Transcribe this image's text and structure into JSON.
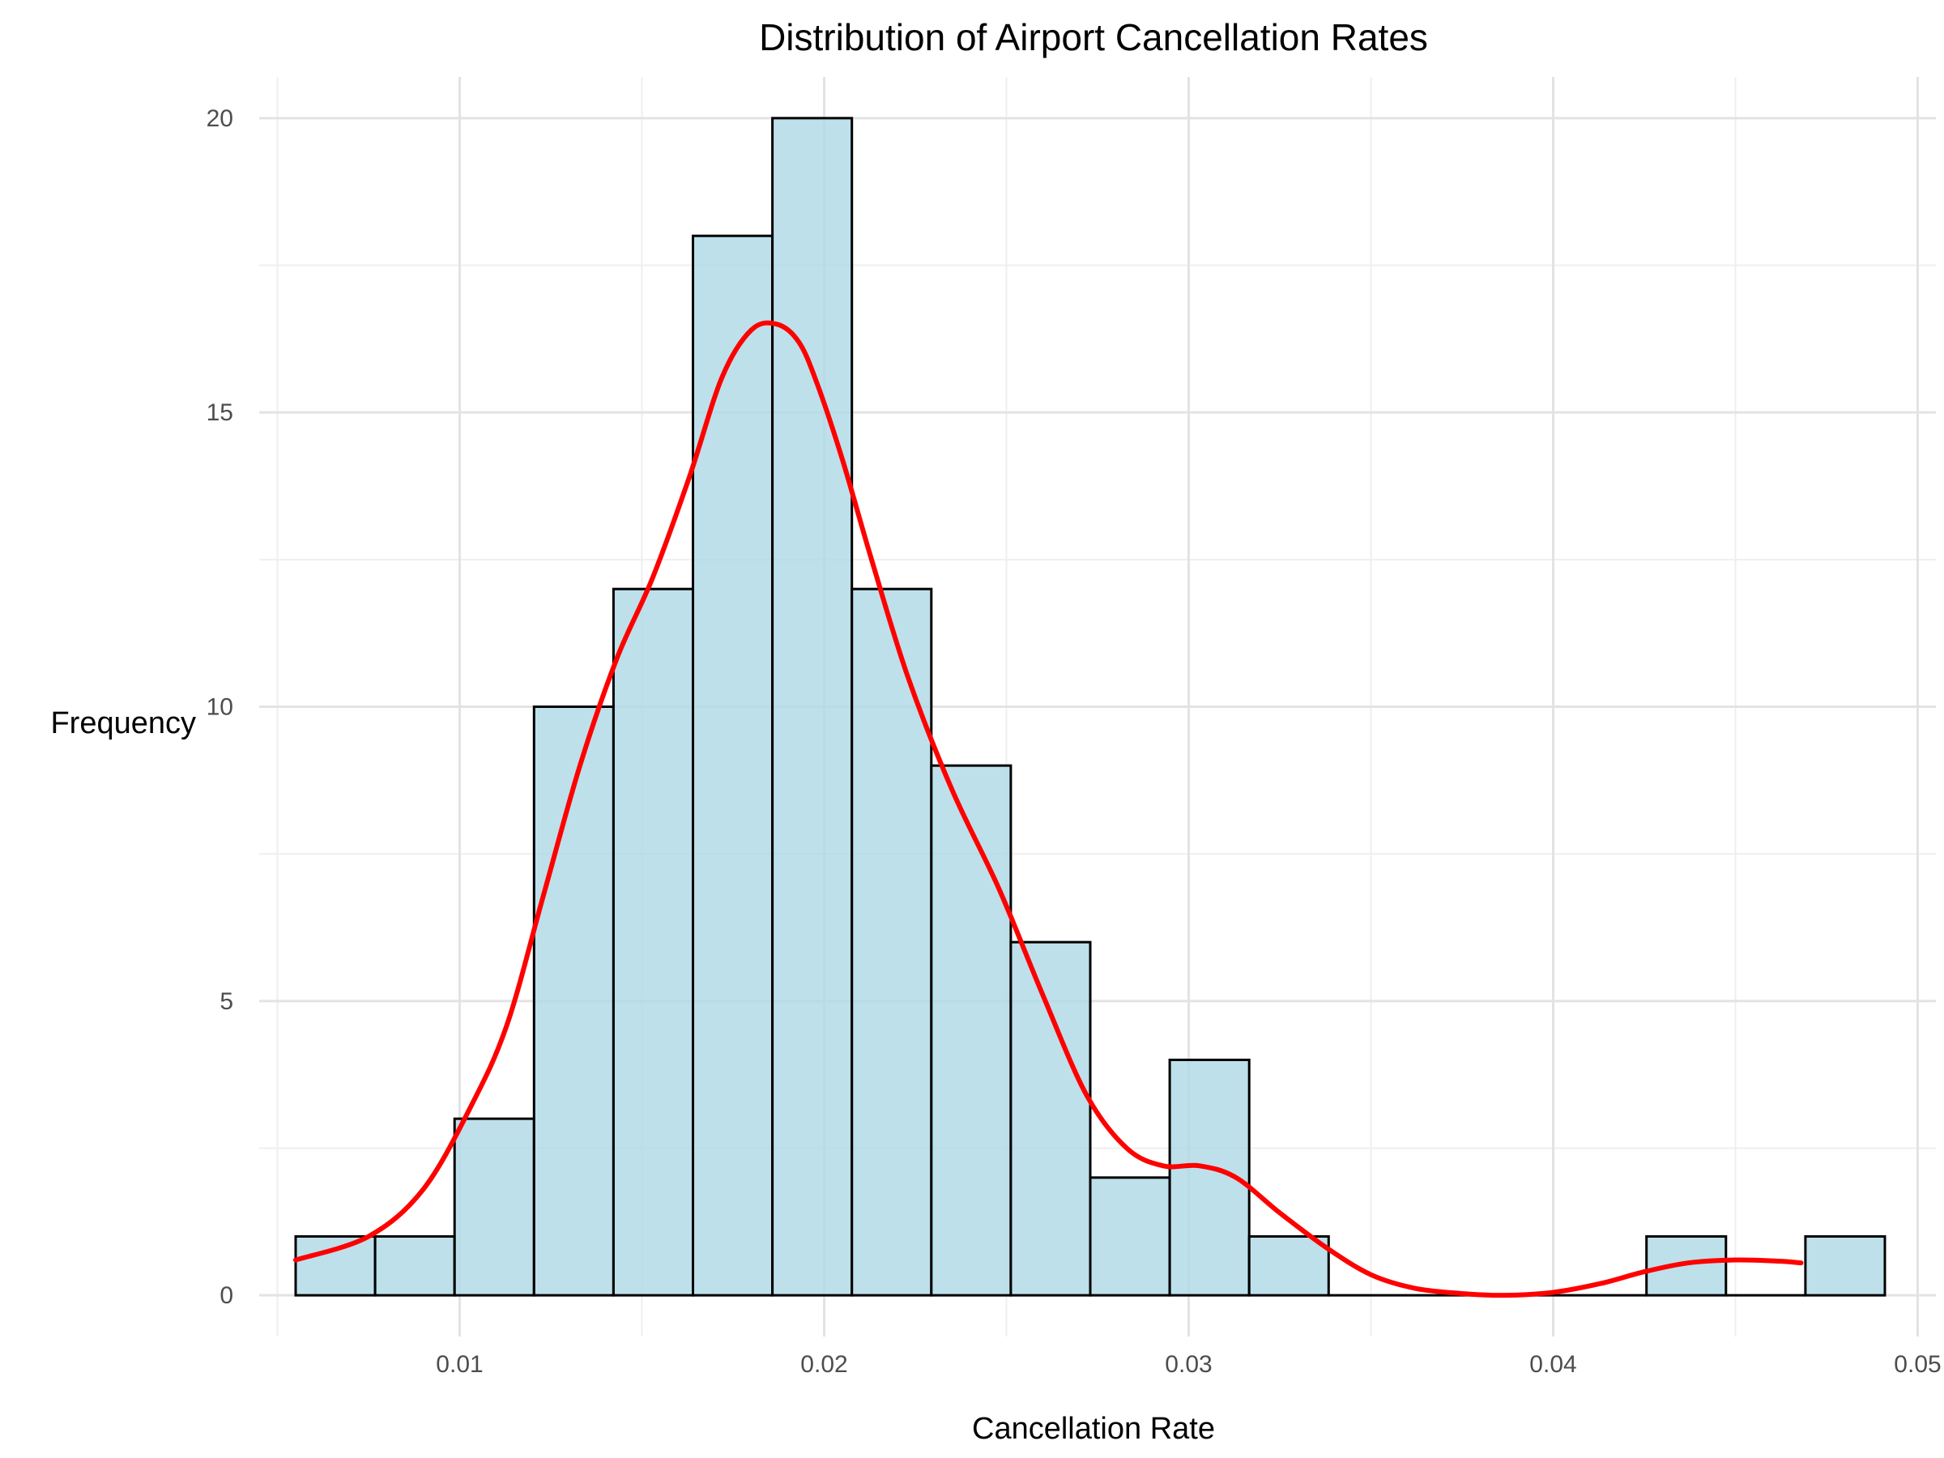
{
  "chart_data": {
    "type": "bar",
    "subtype": "histogram",
    "title": "Distribution of Airport Cancellation Rates",
    "xlabel": "Cancellation Rate",
    "ylabel": "Frequency",
    "xlim": [
      0.0045,
      0.0505
    ],
    "ylim": [
      -0.7,
      20.7
    ],
    "x_ticks": [
      0.01,
      0.02,
      0.03,
      0.04,
      0.05
    ],
    "x_tick_labels": [
      "0.01",
      "0.02",
      "0.03",
      "0.04",
      "0.05"
    ],
    "x_minor_ticks": [
      0.005,
      0.015,
      0.025,
      0.035,
      0.045
    ],
    "y_ticks": [
      0,
      5,
      10,
      15,
      20
    ],
    "y_tick_labels": [
      "0",
      "5",
      "10",
      "15",
      "20"
    ],
    "y_minor_ticks": [
      2.5,
      7.5,
      12.5,
      17.5
    ],
    "grid": true,
    "legend": "none",
    "bin_edges": [
      0.0055,
      0.00768,
      0.00986,
      0.01204,
      0.01422,
      0.0164,
      0.01858,
      0.02076,
      0.02294,
      0.02512,
      0.0273,
      0.02948,
      0.03166,
      0.03384,
      0.03602,
      0.0382,
      0.04038,
      0.04256,
      0.04474,
      0.04692,
      0.0491
    ],
    "counts": [
      1,
      1,
      3,
      10,
      12,
      18,
      20,
      12,
      9,
      6,
      2,
      4,
      1,
      0,
      0,
      0,
      0,
      1,
      0,
      1
    ],
    "density_curve": {
      "x": [
        0.0055,
        0.0075,
        0.009,
        0.0103,
        0.0113,
        0.0123,
        0.0133,
        0.0143,
        0.0153,
        0.0163,
        0.0172,
        0.018,
        0.0187,
        0.0193,
        0.0198,
        0.0205,
        0.0213,
        0.0223,
        0.0235,
        0.0248,
        0.026,
        0.0272,
        0.0283,
        0.0293,
        0.0303,
        0.0313,
        0.0325,
        0.0338,
        0.035,
        0.0362,
        0.0375,
        0.0387,
        0.04,
        0.0413,
        0.0425,
        0.0437,
        0.045,
        0.0462,
        0.0468
      ],
      "y": [
        0.6,
        1.0,
        1.8,
        3.2,
        4.6,
        6.8,
        9.0,
        10.8,
        12.2,
        13.9,
        15.6,
        16.4,
        16.5,
        16.2,
        15.5,
        14.2,
        12.5,
        10.5,
        8.6,
        6.9,
        5.1,
        3.4,
        2.5,
        2.2,
        2.2,
        2.0,
        1.4,
        0.8,
        0.35,
        0.12,
        0.03,
        0.0,
        0.05,
        0.2,
        0.4,
        0.55,
        0.6,
        0.58,
        0.55
      ]
    },
    "colors": {
      "bar_fill": "#add8e6",
      "bar_fill_opacity": 0.8,
      "bar_edge": "#000000",
      "density_line": "#ff0000",
      "grid": "#e3e3e3",
      "background": "#ffffff"
    }
  }
}
